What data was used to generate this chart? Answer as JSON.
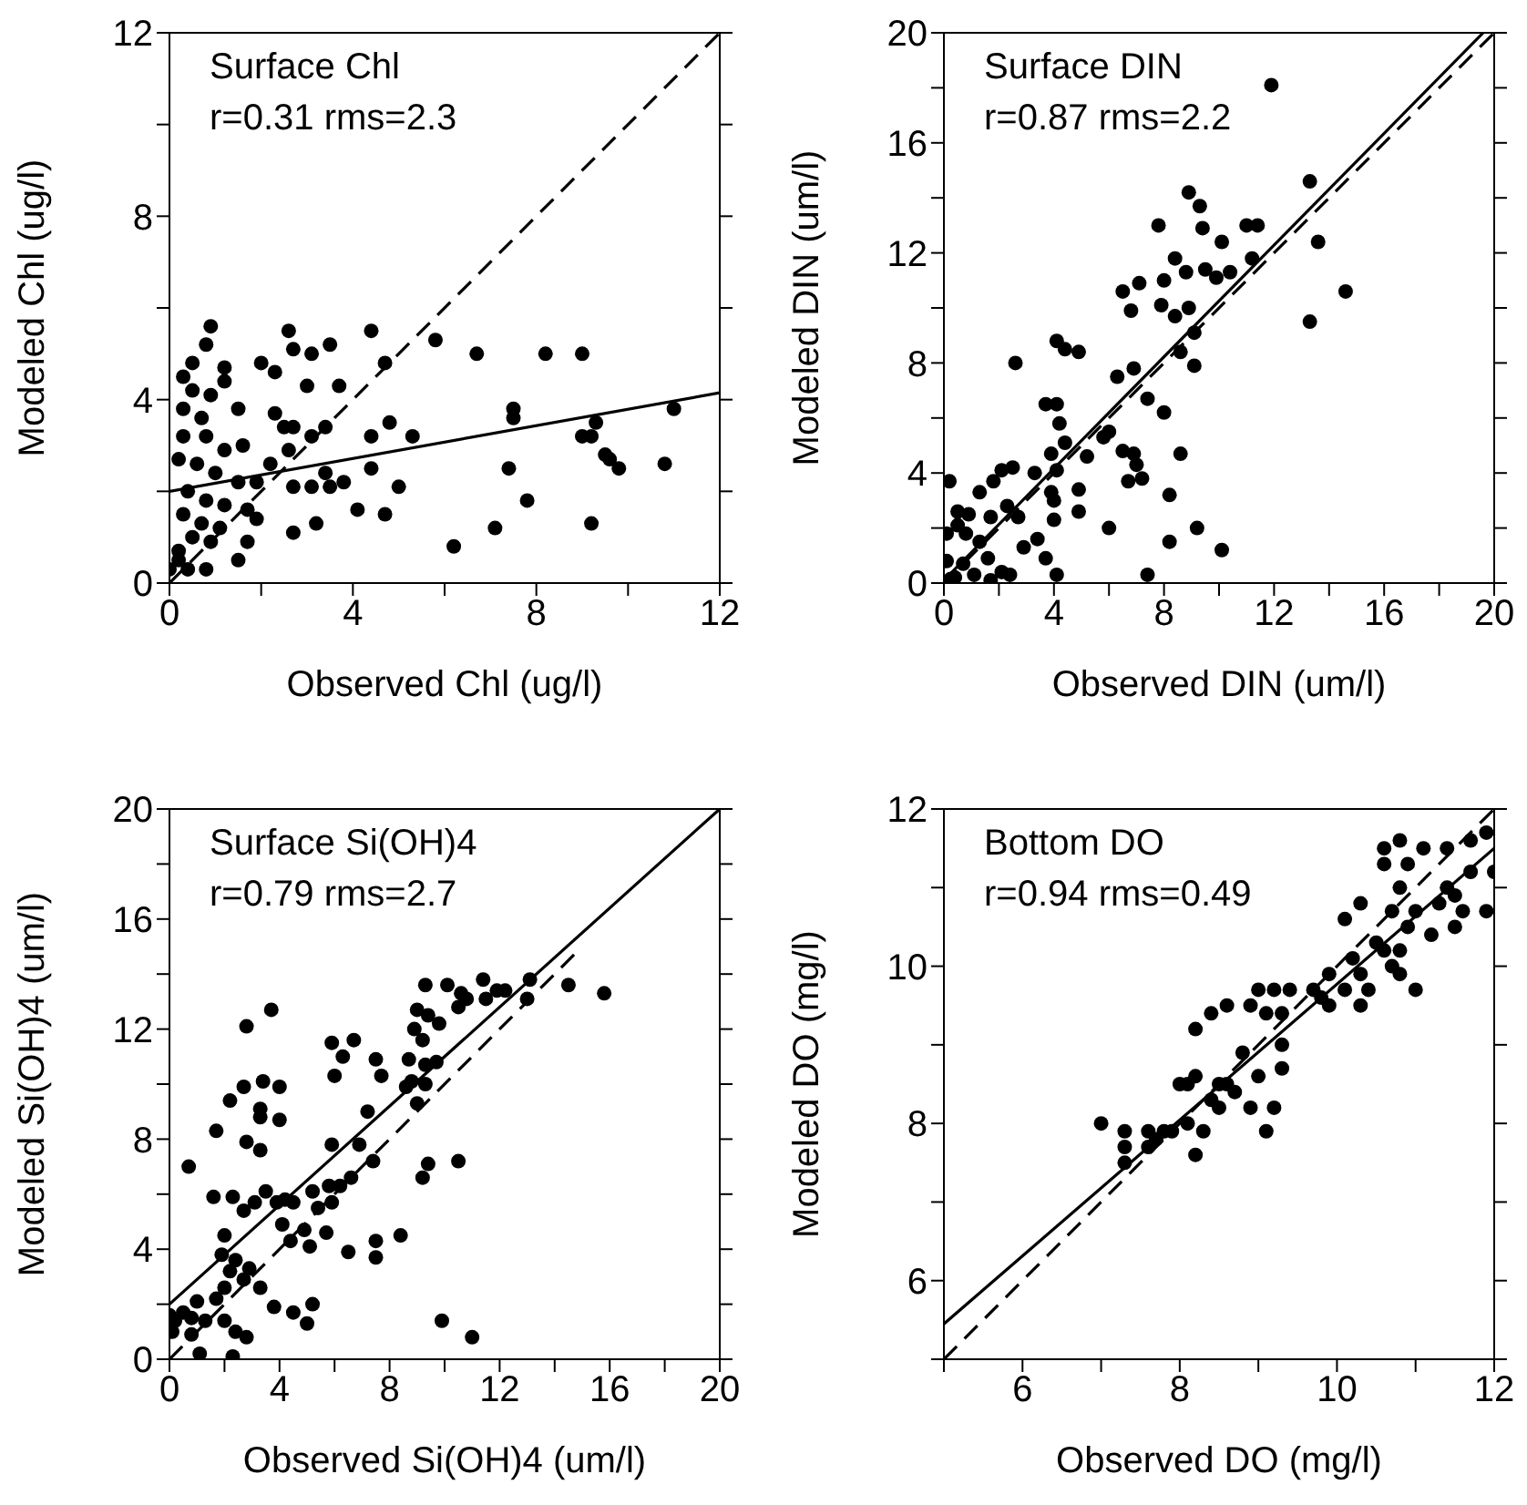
{
  "chart_data": [
    {
      "type": "scatter",
      "xlabel": "Observed Chl (ug/l)",
      "ylabel": "Modeled Chl (ug/l)",
      "annotations": [
        "Surface Chl",
        "r=0.31 rms=2.3"
      ],
      "xlim": [
        0,
        12
      ],
      "ylim": [
        0,
        12
      ],
      "xticks": [
        0,
        {
          "value": 2,
          "label": null
        },
        4,
        {
          "value": 6,
          "label": null
        },
        8,
        {
          "value": 10,
          "label": null
        },
        12
      ],
      "yticks": [
        0,
        {
          "value": 2,
          "label": null
        },
        4,
        {
          "value": 6,
          "label": null
        },
        8,
        {
          "value": 10,
          "label": null
        },
        12
      ],
      "marker": "circle",
      "series": [
        {
          "type": "scatter",
          "color": "#000000",
          "x": [
            0.9,
            0.8,
            0.5,
            0.3,
            1.2,
            1.2,
            0.5,
            0.9,
            0.3,
            0.7,
            1.5,
            0.3,
            0.8,
            1.2,
            1.6,
            0.2,
            0.6,
            1.0,
            1.5,
            1.9,
            0.4,
            0.8,
            1.2,
            1.7,
            0.3,
            0.7,
            1.1,
            1.9,
            0.5,
            0.9,
            1.5,
            0.2,
            0.0,
            0.4,
            0.8,
            0.2,
            1.7,
            2.6,
            2.7,
            3.1,
            3.5,
            2.0,
            2.3,
            3.0,
            3.7,
            2.3,
            2.5,
            2.7,
            3.1,
            3.4,
            2.6,
            2.2,
            2.7,
            3.1,
            3.4,
            3.8,
            3.5,
            2.7,
            3.2,
            4.4,
            4.7,
            4.4,
            4.8,
            5.3,
            4.4,
            5.0,
            4.1,
            4.7,
            5.8,
            6.7,
            7.5,
            7.5,
            7.4,
            7.8,
            6.2,
            7.1,
            8.2,
            9.0,
            9.3,
            9.0,
            9.2,
            9.5,
            9.6,
            9.8,
            9.2,
            10.8,
            11.0
          ],
          "values": [
            5.6,
            5.2,
            4.8,
            4.5,
            4.7,
            4.4,
            4.2,
            4.1,
            3.8,
            3.6,
            3.8,
            3.2,
            3.2,
            2.9,
            3.0,
            2.7,
            2.6,
            2.4,
            2.2,
            2.2,
            2.0,
            1.8,
            1.7,
            1.6,
            1.5,
            1.3,
            1.2,
            1.4,
            1.0,
            0.9,
            0.5,
            0.7,
            0.3,
            0.3,
            0.3,
            0.5,
            0.9,
            5.5,
            5.1,
            5.0,
            5.2,
            4.8,
            4.6,
            4.3,
            4.3,
            3.7,
            3.4,
            3.4,
            3.2,
            3.4,
            2.9,
            2.6,
            2.1,
            2.1,
            2.4,
            2.2,
            2.1,
            1.1,
            1.3,
            5.5,
            4.8,
            3.2,
            3.5,
            3.2,
            2.5,
            2.1,
            1.6,
            1.5,
            5.3,
            5.0,
            3.8,
            3.6,
            2.5,
            1.8,
            0.8,
            1.2,
            5.0,
            5.0,
            3.5,
            3.2,
            3.2,
            2.8,
            2.7,
            2.5,
            1.3,
            2.6,
            3.8
          ]
        },
        {
          "type": "line",
          "color": "#000000",
          "line_style": "solid",
          "marker": "none",
          "x": [
            0,
            12
          ],
          "values": [
            2.0,
            4.15
          ]
        },
        {
          "type": "line",
          "color": "#000000",
          "line_style": "dashed",
          "marker": "none",
          "x": [
            0,
            12
          ],
          "values": [
            0,
            12
          ]
        }
      ]
    },
    {
      "type": "scatter",
      "xlabel": "Observed DIN (um/l)",
      "ylabel": "Modeled DIN (um/l)",
      "annotations": [
        "Surface DIN",
        "r=0.87 rms=2.2"
      ],
      "xlim": [
        0,
        20
      ],
      "ylim": [
        0,
        20
      ],
      "xticks": [
        0,
        {
          "value": 2,
          "label": null
        },
        4,
        {
          "value": 6,
          "label": null
        },
        8,
        {
          "value": 10,
          "label": null
        },
        12,
        {
          "value": 14,
          "label": null
        },
        16,
        {
          "value": 18,
          "label": null
        },
        20
      ],
      "yticks": [
        0,
        {
          "value": 2,
          "label": null
        },
        4,
        {
          "value": 6,
          "label": null
        },
        8,
        {
          "value": 10,
          "label": null
        },
        12,
        {
          "value": 14,
          "label": null
        },
        16,
        {
          "value": 18,
          "label": null
        },
        20
      ],
      "marker": "circle",
      "series": [
        {
          "type": "scatter",
          "color": "#000000",
          "x": [
            11.9,
            13.3,
            13.6,
            14.6,
            13.3,
            11.4,
            11.0,
            8.9,
            9.3,
            9.4,
            10.1,
            7.8,
            6.5,
            7.1,
            6.8,
            8.0,
            8.4,
            8.8,
            7.9,
            8.4,
            8.9,
            9.5,
            9.9,
            10.4,
            11.2,
            9.1,
            8.6,
            9.1,
            6.9,
            6.3,
            7.4,
            8.0,
            4.1,
            4.4,
            4.9,
            2.6,
            3.7,
            4.1,
            4.2,
            4.4,
            3.9,
            5.2,
            5.8,
            6.0,
            6.5,
            6.9,
            7.0,
            6.7,
            7.2,
            8.6,
            8.2,
            8.2,
            9.2,
            10.1,
            7.4,
            6.0,
            4.9,
            4.9,
            4.0,
            4.0,
            3.4,
            3.7,
            4.1,
            2.9,
            3.3,
            4.1,
            3.9,
            2.5,
            2.1,
            1.8,
            1.3,
            2.3,
            2.7,
            1.7,
            0.2,
            0.5,
            0.9,
            0.5,
            0.8,
            0.1,
            1.3,
            1.6,
            2.1,
            2.4,
            1.1,
            0.4,
            0.7,
            0.1,
            1.7,
            0.25
          ],
          "values": [
            18.1,
            14.6,
            12.4,
            10.6,
            9.5,
            13.0,
            13.0,
            14.2,
            13.7,
            12.9,
            12.4,
            13.0,
            10.6,
            10.9,
            9.9,
            11.0,
            11.8,
            11.3,
            10.1,
            9.7,
            10.0,
            11.4,
            11.1,
            11.3,
            11.8,
            9.1,
            8.4,
            7.9,
            7.8,
            7.5,
            6.7,
            6.2,
            8.8,
            8.5,
            8.4,
            8.0,
            6.5,
            6.5,
            5.8,
            5.1,
            4.7,
            4.6,
            5.3,
            5.5,
            4.8,
            4.7,
            4.3,
            3.7,
            3.8,
            4.7,
            3.2,
            1.5,
            2.0,
            1.2,
            0.3,
            2.0,
            3.4,
            2.6,
            3.0,
            2.3,
            1.6,
            0.9,
            0.3,
            1.3,
            4.0,
            4.1,
            3.3,
            4.2,
            4.1,
            3.7,
            3.3,
            2.8,
            2.4,
            2.4,
            3.7,
            2.6,
            2.5,
            2.1,
            1.8,
            1.8,
            1.5,
            0.9,
            0.4,
            0.3,
            0.3,
            0.2,
            0.7,
            0.8,
            0.1,
            0.15
          ]
        },
        {
          "type": "line",
          "color": "#000000",
          "line_style": "solid",
          "marker": "none",
          "x": [
            0,
            19.6
          ],
          "values": [
            0.1,
            20
          ]
        },
        {
          "type": "line",
          "color": "#000000",
          "line_style": "dashed",
          "marker": "none",
          "x": [
            0,
            20
          ],
          "values": [
            0,
            20
          ]
        }
      ]
    },
    {
      "type": "scatter",
      "xlabel": "Observed Si(OH)4 (um/l)",
      "ylabel": "Modeled Si(OH)4 (um/l)",
      "annotations": [
        "Surface Si(OH)4",
        "r=0.79 rms=2.7"
      ],
      "xlim": [
        0,
        20
      ],
      "ylim": [
        0,
        20
      ],
      "xticks": [
        0,
        {
          "value": 2,
          "label": null
        },
        4,
        {
          "value": 6,
          "label": null
        },
        8,
        {
          "value": 10,
          "label": null
        },
        12,
        {
          "value": 14,
          "label": null
        },
        16,
        {
          "value": 18,
          "label": null
        },
        20
      ],
      "yticks": [
        0,
        {
          "value": 2,
          "label": null
        },
        4,
        {
          "value": 6,
          "label": null
        },
        8,
        {
          "value": 10,
          "label": null
        },
        12,
        {
          "value": 14,
          "label": null
        },
        16,
        {
          "value": 18,
          "label": null
        },
        20
      ],
      "marker": "circle",
      "series": [
        {
          "type": "scatter",
          "color": "#000000",
          "x": [
            15.8,
            14.5,
            13.1,
            13.0,
            12.2,
            11.9,
            11.4,
            11.5,
            10.8,
            10.6,
            10.1,
            10.5,
            9.3,
            9.0,
            9.4,
            9.8,
            8.9,
            9.2,
            8.7,
            9.3,
            9.7,
            8.8,
            9.3,
            8.6,
            9.0,
            9.4,
            9.2,
            10.5,
            9.9,
            11.0,
            3.7,
            2.8,
            5.9,
            6.7,
            6.3,
            6.0,
            7.5,
            7.7,
            2.7,
            3.4,
            4.0,
            2.2,
            3.3,
            3.3,
            4.0,
            1.7,
            7.2,
            5.9,
            6.9,
            7.4,
            2.8,
            3.3,
            0.7,
            1.6,
            2.3,
            2.7,
            3.1,
            3.5,
            3.9,
            4.2,
            4.5,
            5.2,
            5.8,
            6.2,
            6.6,
            5.9,
            5.4,
            4.1,
            4.9,
            4.4,
            5.1,
            5.7,
            6.5,
            7.5,
            7.5,
            8.4,
            2.0,
            1.9,
            2.4,
            2.9,
            2.2,
            2.7,
            2.0,
            3.3,
            1.7,
            1.0,
            0.5,
            0.2,
            0.0,
            0.8,
            1.3,
            2.0,
            3.8,
            4.5,
            5.2,
            5.0,
            2.4,
            2.8,
            0.8,
            0.1,
            1.1,
            2.3
          ],
          "values": [
            13.3,
            13.6,
            13.8,
            13.1,
            13.4,
            13.4,
            13.8,
            13.1,
            13.1,
            13.3,
            13.6,
            12.8,
            13.6,
            12.7,
            12.5,
            12.2,
            12.0,
            11.6,
            10.9,
            10.7,
            10.8,
            10.1,
            10.0,
            9.9,
            9.3,
            7.1,
            6.6,
            7.2,
            1.4,
            0.8,
            12.7,
            12.1,
            11.5,
            11.6,
            11.0,
            10.3,
            10.9,
            10.3,
            9.9,
            10.1,
            9.9,
            9.4,
            9.1,
            8.8,
            8.7,
            8.3,
            9.0,
            7.8,
            7.8,
            7.2,
            7.9,
            7.6,
            7.0,
            5.9,
            5.9,
            5.4,
            5.7,
            6.1,
            5.7,
            5.8,
            5.7,
            6.1,
            6.3,
            6.3,
            6.6,
            5.7,
            5.5,
            4.9,
            4.7,
            4.3,
            4.1,
            4.6,
            3.9,
            4.3,
            3.7,
            4.5,
            4.5,
            3.8,
            3.6,
            3.3,
            3.2,
            2.9,
            2.6,
            2.6,
            2.2,
            2.1,
            1.7,
            1.4,
            1.6,
            1.5,
            1.4,
            1.4,
            1.9,
            1.7,
            2.0,
            1.3,
            1.0,
            0.8,
            0.9,
            1.0,
            0.2,
            0.1
          ]
        },
        {
          "type": "line",
          "color": "#000000",
          "line_style": "solid",
          "marker": "none",
          "x": [
            0,
            20
          ],
          "values": [
            2.0,
            20
          ]
        },
        {
          "type": "line",
          "color": "#000000",
          "line_style": "dashed",
          "marker": "none",
          "x": [
            0,
            14.8
          ],
          "values": [
            0,
            14.8
          ]
        }
      ]
    },
    {
      "type": "scatter",
      "xlabel": "Observed DO (mg/l)",
      "ylabel": "Modeled DO (mg/l)",
      "annotations": [
        "Bottom DO",
        "r=0.94 rms=0.49"
      ],
      "xlim": [
        5,
        12
      ],
      "ylim": [
        5,
        12
      ],
      "xticks": [
        {
          "value": 5,
          "label": null
        },
        6,
        {
          "value": 7,
          "label": null
        },
        8,
        {
          "value": 9,
          "label": null
        },
        10,
        {
          "value": 11,
          "label": null
        },
        12
      ],
      "yticks": [
        {
          "value": 5,
          "label": null
        },
        6,
        {
          "value": 7,
          "label": null
        },
        8,
        {
          "value": 9,
          "label": null
        },
        10,
        {
          "value": 11,
          "label": null
        },
        12
      ],
      "marker": "circle",
      "series": [
        {
          "type": "scatter",
          "color": "#000000",
          "x": [
            7.0,
            7.3,
            7.3,
            7.3,
            7.6,
            7.6,
            7.7,
            7.8,
            7.9,
            8.0,
            8.1,
            8.1,
            8.2,
            8.2,
            8.3,
            8.4,
            8.5,
            8.5,
            8.6,
            8.7,
            8.8,
            8.9,
            9.0,
            9.1,
            9.2,
            9.3,
            9.3,
            8.2,
            8.4,
            8.6,
            8.9,
            9.0,
            9.2,
            9.1,
            9.3,
            9.4,
            9.7,
            9.8,
            9.9,
            9.9,
            10.1,
            10.2,
            10.3,
            10.3,
            10.4,
            10.6,
            10.7,
            10.8,
            10.8,
            11.0,
            10.9,
            11.0,
            11.2,
            11.3,
            11.4,
            11.5,
            11.6,
            11.5,
            11.7,
            11.9,
            11.9,
            12.0,
            11.7,
            11.4,
            11.1,
            10.8,
            10.6,
            10.6,
            10.9,
            10.8,
            10.7,
            10.3,
            10.1,
            10.5
          ],
          "values": [
            8.0,
            7.9,
            7.7,
            7.5,
            7.9,
            7.7,
            7.8,
            7.9,
            7.9,
            8.5,
            8.0,
            8.5,
            8.6,
            7.6,
            7.9,
            8.3,
            8.2,
            8.5,
            8.5,
            8.4,
            8.9,
            8.2,
            8.6,
            7.9,
            8.2,
            8.7,
            9.0,
            9.2,
            9.4,
            9.5,
            9.5,
            9.7,
            9.7,
            9.4,
            9.4,
            9.7,
            9.7,
            9.6,
            9.5,
            9.9,
            9.7,
            10.1,
            9.5,
            9.9,
            9.7,
            10.2,
            10.0,
            10.2,
            9.9,
            9.7,
            10.5,
            10.7,
            10.4,
            10.8,
            11.0,
            10.5,
            10.7,
            10.9,
            11.2,
            10.7,
            11.7,
            11.2,
            11.6,
            11.5,
            11.5,
            11.6,
            11.5,
            11.3,
            11.3,
            11.0,
            10.7,
            10.8,
            10.6,
            10.3
          ]
        },
        {
          "type": "line",
          "color": "#000000",
          "line_style": "solid",
          "marker": "none",
          "x": [
            5,
            12
          ],
          "values": [
            5.45,
            11.5
          ]
        },
        {
          "type": "line",
          "color": "#000000",
          "line_style": "dashed",
          "marker": "none",
          "x": [
            5,
            12
          ],
          "values": [
            5,
            12
          ]
        }
      ]
    }
  ]
}
